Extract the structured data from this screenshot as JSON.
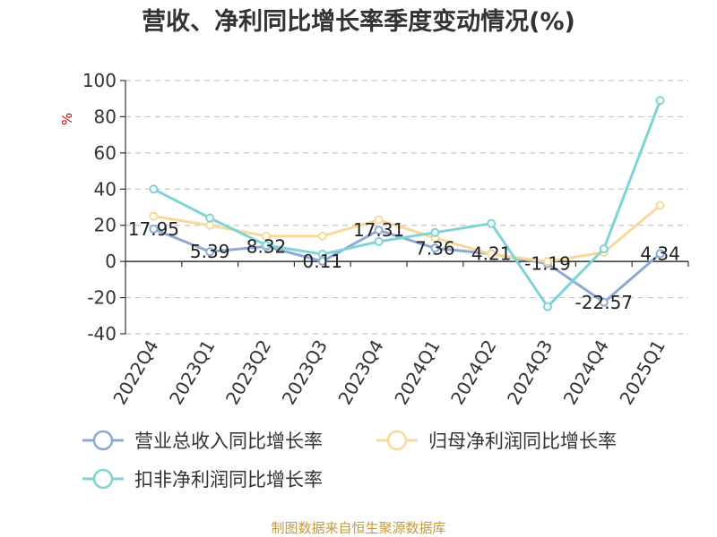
{
  "chart_data": {
    "type": "line",
    "title": "营收、净利同比增长率季度变动情况(%)",
    "ylabel": "%",
    "ylim": [
      -40,
      100
    ],
    "yticks": [
      100,
      80,
      60,
      40,
      20,
      0,
      -20,
      -40
    ],
    "categories": [
      "2022Q4",
      "2023Q1",
      "2023Q2",
      "2023Q3",
      "2023Q4",
      "2024Q1",
      "2024Q2",
      "2024Q3",
      "2024Q4",
      "2025Q1"
    ],
    "series": [
      {
        "name": "营业总收入同比增长率",
        "color": "#8fa8d6",
        "values": [
          17.95,
          5.39,
          8.32,
          0.11,
          17.31,
          7.36,
          4.21,
          -1.19,
          -22.57,
          4.34
        ],
        "labels": [
          "17.95",
          "5.39",
          "8.32",
          "0.11",
          "17.31",
          "7.36",
          "4.21",
          "-1.19",
          "-22.57",
          "4.34"
        ]
      },
      {
        "name": "归母净利润同比增长率",
        "color": "#f9d99a",
        "values": [
          25,
          20,
          14,
          14,
          23,
          13,
          4,
          0,
          5,
          31
        ]
      },
      {
        "name": "扣非净利润同比增长率",
        "color": "#7fd3d7",
        "values": [
          40,
          24,
          9,
          4,
          11,
          16,
          21,
          -25,
          7,
          89
        ]
      }
    ],
    "grid": true,
    "legend_position": "bottom"
  },
  "source_text": "制图数据来自恒生聚源数据库"
}
